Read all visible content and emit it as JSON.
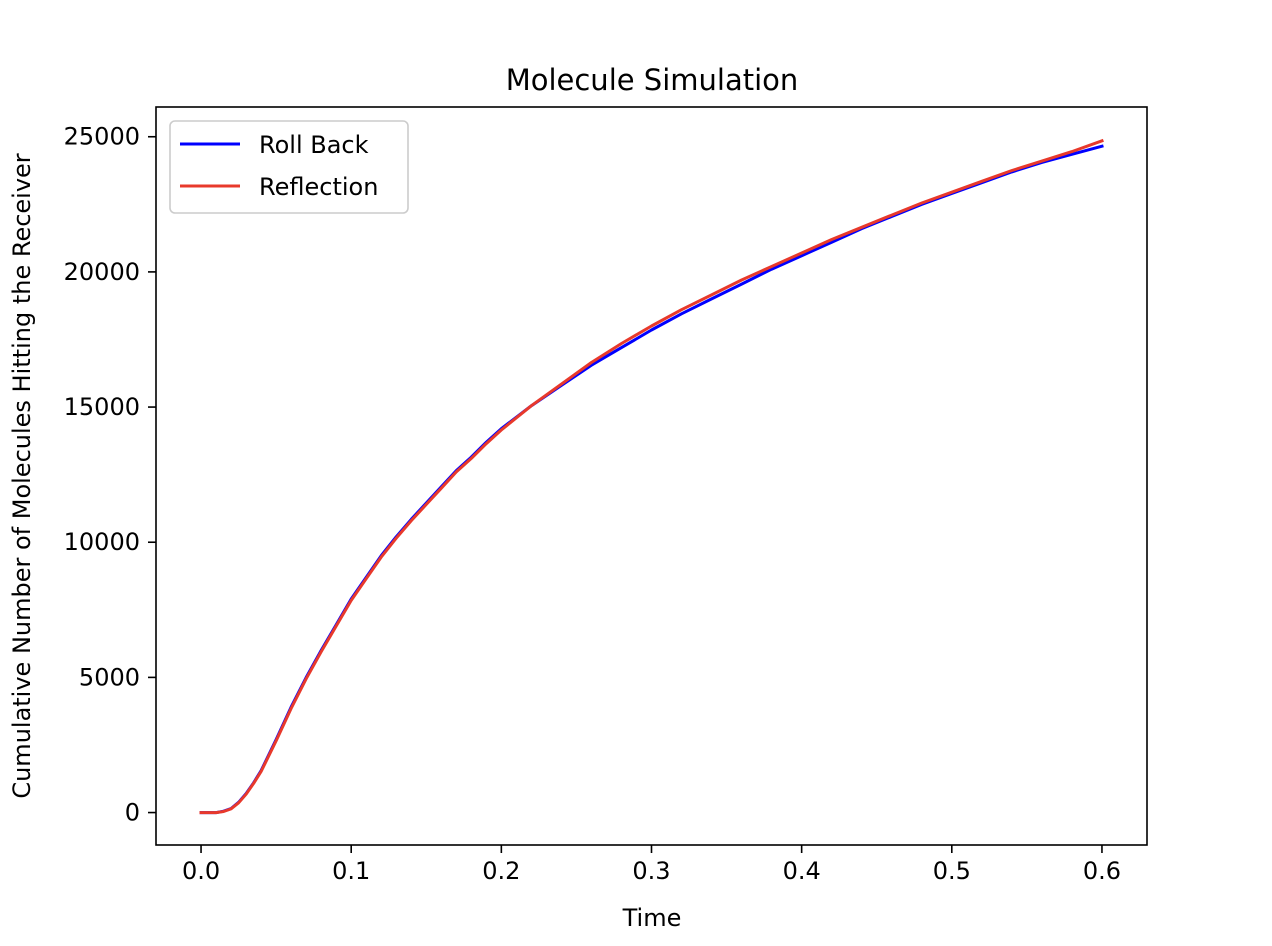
{
  "chart_data": {
    "type": "line",
    "title": "Molecule Simulation",
    "xlabel": "Time",
    "ylabel": "Cumulative Number of Molecules Hitting the Receiver",
    "xlim": [
      -0.03,
      0.63
    ],
    "ylim": [
      -1200,
      26100
    ],
    "xticks": [
      0.0,
      0.1,
      0.2,
      0.3,
      0.4,
      0.5,
      0.6
    ],
    "xtick_labels": [
      "0.0",
      "0.1",
      "0.2",
      "0.3",
      "0.4",
      "0.5",
      "0.6"
    ],
    "yticks": [
      0,
      5000,
      10000,
      15000,
      20000,
      25000
    ],
    "ytick_labels": [
      "0",
      "5000",
      "10000",
      "15000",
      "20000",
      "25000"
    ],
    "grid": false,
    "legend_position": "top-left",
    "series": [
      {
        "name": "Roll Back",
        "color": "#0000ff",
        "x": [
          0.0,
          0.01,
          0.015,
          0.02,
          0.025,
          0.03,
          0.035,
          0.04,
          0.05,
          0.06,
          0.07,
          0.08,
          0.09,
          0.1,
          0.11,
          0.12,
          0.13,
          0.14,
          0.15,
          0.16,
          0.17,
          0.18,
          0.19,
          0.2,
          0.22,
          0.24,
          0.26,
          0.28,
          0.3,
          0.32,
          0.34,
          0.36,
          0.38,
          0.4,
          0.42,
          0.44,
          0.46,
          0.48,
          0.5,
          0.52,
          0.54,
          0.56,
          0.58,
          0.6
        ],
        "y": [
          0,
          0,
          50,
          150,
          380,
          700,
          1100,
          1550,
          2700,
          3900,
          5000,
          6000,
          6950,
          7900,
          8700,
          9500,
          10200,
          10850,
          11450,
          12050,
          12650,
          13150,
          13700,
          14200,
          15050,
          15800,
          16550,
          17200,
          17850,
          18450,
          19000,
          19550,
          20100,
          20600,
          21100,
          21600,
          22050,
          22500,
          22900,
          23300,
          23700,
          24050,
          24350,
          24650
        ]
      },
      {
        "name": "Reflection",
        "color": "#e8392b",
        "x": [
          0.0,
          0.01,
          0.015,
          0.02,
          0.025,
          0.03,
          0.035,
          0.04,
          0.05,
          0.06,
          0.07,
          0.08,
          0.09,
          0.1,
          0.11,
          0.12,
          0.13,
          0.14,
          0.15,
          0.16,
          0.17,
          0.18,
          0.19,
          0.2,
          0.22,
          0.24,
          0.26,
          0.28,
          0.3,
          0.32,
          0.34,
          0.36,
          0.38,
          0.4,
          0.42,
          0.44,
          0.46,
          0.48,
          0.5,
          0.52,
          0.54,
          0.56,
          0.58,
          0.6
        ],
        "y": [
          0,
          0,
          40,
          140,
          360,
          680,
          1080,
          1520,
          2650,
          3850,
          4950,
          5950,
          6900,
          7850,
          8650,
          9450,
          10150,
          10800,
          11400,
          12000,
          12600,
          13100,
          13650,
          14150,
          15050,
          15850,
          16650,
          17350,
          18000,
          18600,
          19150,
          19700,
          20200,
          20700,
          21200,
          21650,
          22100,
          22550,
          22950,
          23350,
          23750,
          24100,
          24450,
          24850
        ]
      }
    ]
  }
}
